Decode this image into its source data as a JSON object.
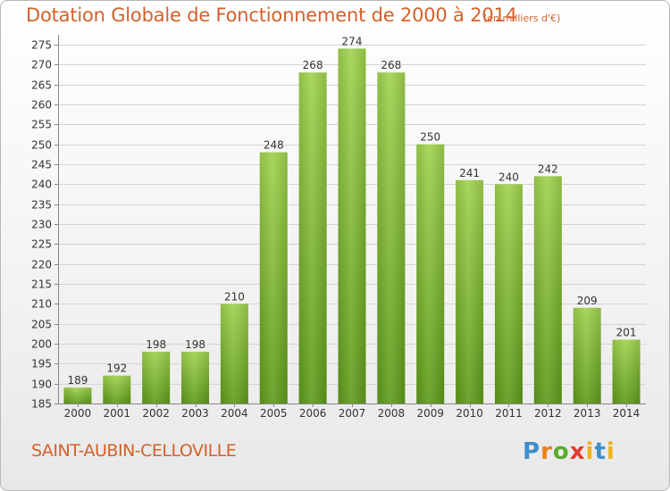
{
  "chart_data": {
    "type": "bar",
    "title": "Dotation Globale de Fonctionnement de 2000 à 2014",
    "unit": "(en milliers d'€)",
    "categories": [
      "2000",
      "2001",
      "2002",
      "2003",
      "2004",
      "2005",
      "2006",
      "2007",
      "2008",
      "2009",
      "2010",
      "2011",
      "2012",
      "2013",
      "2014"
    ],
    "values": [
      189,
      192,
      198,
      198,
      210,
      248,
      268,
      274,
      268,
      250,
      241,
      240,
      242,
      209,
      201
    ],
    "yticks": [
      185,
      190,
      195,
      200,
      205,
      210,
      215,
      220,
      225,
      230,
      235,
      240,
      245,
      250,
      255,
      260,
      265,
      270,
      275
    ],
    "ylim": [
      185,
      277
    ],
    "grid": true,
    "bar_color": "#8cc63f"
  },
  "footer": {
    "city": "SAINT-AUBIN-CELLOVILLE",
    "logo": "Proxiti"
  }
}
